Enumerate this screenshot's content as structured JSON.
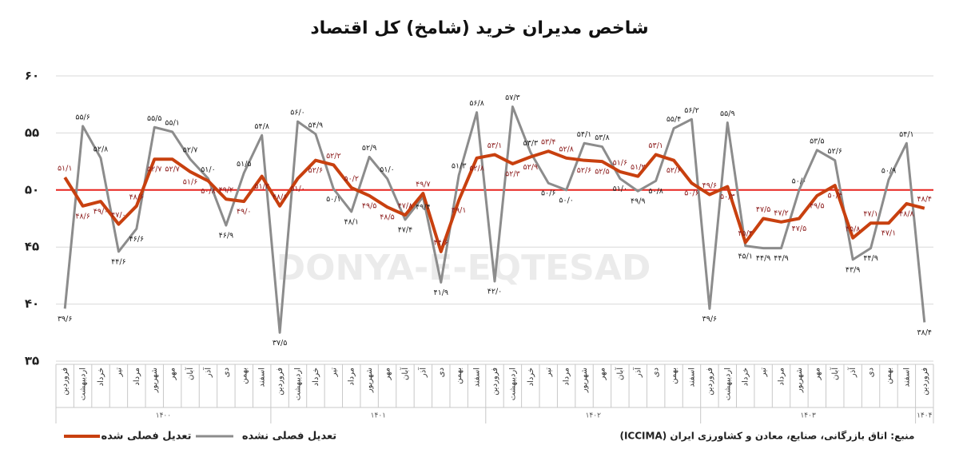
{
  "chart_data": {
    "type": "line",
    "title": "شاخص مدیران خرید (شامخ) کل اقتصاد",
    "watermark": "DONYA-E-EQTESAD",
    "source": "منبع: اتاق بازرگانی، صنایع، معادن و کشاورزی ایران (ICCIMA)",
    "categories": [
      "فروردین",
      "اردیبهشت",
      "خرداد",
      "تیر",
      "مرداد",
      "شهریور",
      "مهر",
      "آبان",
      "آذر",
      "دی",
      "بهمن",
      "اسفند",
      "فروردین",
      "اردیبهشت",
      "خرداد",
      "تیر",
      "مرداد",
      "شهریور",
      "مهر",
      "آبان",
      "آذر",
      "دی",
      "بهمن",
      "اسفند",
      "فروردین",
      "اردیبهشت",
      "خرداد",
      "تیر",
      "مرداد",
      "شهریور",
      "مهر",
      "آبان",
      "آذر",
      "دی",
      "بهمن",
      "اسفند",
      "فروردین",
      "اردیبهشت",
      "خرداد",
      "تیر",
      "مرداد",
      "شهریور",
      "مهر",
      "آبان",
      "آذر",
      "دی",
      "بهمن",
      "اسفند",
      "فروردین"
    ],
    "years": [
      "۱۴۰۰",
      "۱۴۰۰",
      "۱۴۰۰",
      "۱۴۰۰",
      "۱۴۰۰",
      "۱۴۰۰",
      "۱۴۰۰",
      "۱۴۰۰",
      "۱۴۰۰",
      "۱۴۰۰",
      "۱۴۰۰",
      "۱۴۰۰",
      "۱۴۰۱",
      "۱۴۰۱",
      "۱۴۰۱",
      "۱۴۰۱",
      "۱۴۰۱",
      "۱۴۰۱",
      "۱۴۰۱",
      "۱۴۰۱",
      "۱۴۰۱",
      "۱۴۰۱",
      "۱۴۰۱",
      "۱۴۰۱",
      "۱۴۰۲",
      "۱۴۰۲",
      "۱۴۰۲",
      "۱۴۰۲",
      "۱۴۰۲",
      "۱۴۰۲",
      "۱۴۰۲",
      "۱۴۰۲",
      "۱۴۰۲",
      "۱۴۰۲",
      "۱۴۰۲",
      "۱۴۰۲",
      "۱۴۰۳",
      "۱۴۰۳",
      "۱۴۰۳",
      "۱۴۰۳",
      "۱۴۰۳",
      "۱۴۰۳",
      "۱۴۰۳",
      "۱۴۰۳",
      "۱۴۰۳",
      "۱۴۰۳",
      "۱۴۰۳",
      "۱۴۰۳",
      "۱۴۰۴"
    ],
    "series": [
      {
        "name": "تعدیل فصلی شده",
        "color": "#c8400f",
        "label_color": "#8b1a1a",
        "values": [
          51.1,
          48.6,
          49.0,
          47.0,
          48.6,
          52.7,
          52.7,
          51.6,
          50.8,
          49.2,
          49.0,
          51.2,
          48.6,
          51.0,
          52.6,
          52.2,
          50.2,
          49.5,
          48.5,
          47.8,
          49.7,
          44.6,
          49.1,
          52.8,
          53.1,
          52.3,
          52.9,
          53.4,
          52.8,
          52.6,
          52.5,
          51.6,
          51.2,
          53.1,
          52.6,
          50.6,
          49.6,
          50.3,
          45.4,
          47.5,
          47.2,
          47.5,
          49.5,
          50.4,
          45.8,
          47.1,
          47.1,
          48.8,
          48.4
        ],
        "value_labels": [
          "۵۱/۱",
          "۴۸/۶",
          "۴۹/۰",
          "۴۷/۰",
          "۴۸/۶",
          "۵۲/۷",
          "۵۲/۷",
          "۵۱/۶",
          "۵۰/۸",
          "۴۹/۲",
          "۴۹/۰",
          "۵۱/۲",
          "۴۸/۶",
          "۵۱/۰",
          "۵۲/۶",
          "۵۲/۲",
          "۵۰/۲",
          "۴۹/۵",
          "۴۸/۵",
          "۴۷/۸",
          "۴۹/۷",
          "۴۴/۶",
          "۴۹/۱",
          "۵۲/۸",
          "۵۳/۱",
          "۵۲/۳",
          "۵۲/۹",
          "۵۳/۴",
          "۵۲/۸",
          "۵۲/۶",
          "۵۲/۵",
          "۵۱/۶",
          "۵۱/۲",
          "۵۳/۱",
          "۵۲/۶",
          "۵۰/۶",
          "۴۹/۶",
          "۵۰/۳",
          "۴۵/۴",
          "۴۷/۵",
          "۴۷/۲",
          "۴۷/۵",
          "۴۹/۵",
          "۵۰/۴",
          "۴۵/۸",
          "۴۷/۱",
          "۴۷/۱",
          "۴۸/۸",
          "۴۸/۴"
        ]
      },
      {
        "name": "تعدیل فصلی نشده",
        "color": "#8c8c8c",
        "label_color": "#222222",
        "values": [
          39.6,
          55.6,
          52.8,
          44.6,
          46.6,
          55.5,
          55.1,
          52.7,
          51.0,
          46.9,
          51.5,
          54.8,
          37.5,
          56.0,
          54.9,
          50.1,
          48.1,
          52.9,
          51.0,
          47.4,
          49.4,
          41.9,
          51.3,
          56.8,
          42.0,
          57.3,
          53.3,
          50.6,
          50.0,
          54.1,
          53.8,
          51.0,
          49.9,
          50.8,
          55.4,
          56.2,
          39.6,
          55.9,
          45.1,
          44.9,
          44.9,
          50.0,
          53.5,
          52.6,
          43.9,
          44.9,
          50.9,
          54.1,
          38.4
        ],
        "value_labels": [
          "۳۹/۶",
          "۵۵/۶",
          "۵۲/۸",
          "۴۴/۶",
          "۴۶/۶",
          "۵۵/۵",
          "۵۵/۱",
          "۵۲/۷",
          "۵۱/۰",
          "۴۶/۹",
          "۵۱/۵",
          "۵۴/۸",
          "۳۷/۵",
          "۵۶/۰",
          "۵۴/۹",
          "۵۰/۱",
          "۴۸/۱",
          "۵۲/۹",
          "۵۱/۰",
          "۴۷/۴",
          "۴۹/۴",
          "۴۱/۹",
          "۵۱/۳",
          "۵۶/۸",
          "۴۲/۰",
          "۵۷/۳",
          "۵۳/۳",
          "۵۰/۶",
          "۵۰/۰",
          "۵۴/۱",
          "۵۳/۸",
          "۵۱/۰",
          "۴۹/۹",
          "۵۰/۸",
          "۵۵/۴",
          "۵۶/۲",
          "۳۹/۶",
          "۵۵/۹",
          "۴۵/۱",
          "۴۴/۹",
          "۴۴/۹",
          "۵۰/۰",
          "۵۳/۵",
          "۵۲/۶",
          "۴۳/۹",
          "۴۴/۹",
          "۵۰/۹",
          "۵۴/۱",
          "۳۸/۴"
        ]
      }
    ],
    "reference_line": {
      "value": 50,
      "color": "#e8231e"
    },
    "ylim": [
      35,
      60
    ],
    "yticks": [
      {
        "value": 35,
        "label": "۳۵"
      },
      {
        "value": 40,
        "label": "۴۰"
      },
      {
        "value": 45,
        "label": "۴۵"
      },
      {
        "value": 50,
        "label": "۵۰"
      },
      {
        "value": 55,
        "label": "۵۵"
      },
      {
        "value": 60,
        "label": "۶۰"
      }
    ],
    "grid": true
  }
}
